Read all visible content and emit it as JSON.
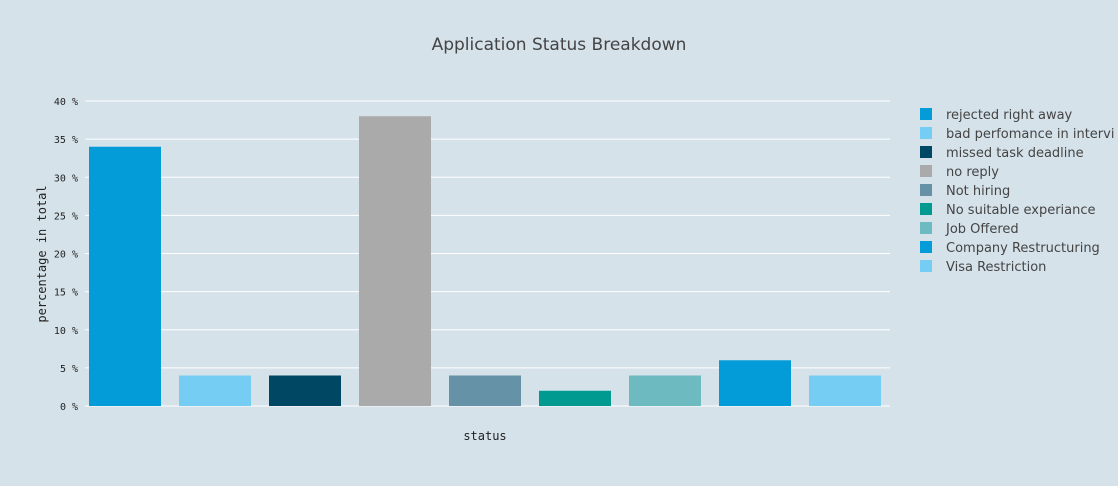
{
  "chart_data": {
    "type": "bar",
    "title": "Application Status Breakdown",
    "xlabel": "status",
    "ylabel": "percentage in total",
    "ylim": [
      0,
      40
    ],
    "yticks": [
      0,
      5,
      10,
      15,
      20,
      25,
      30,
      35,
      40
    ],
    "ytick_suffix": " %",
    "grid": true,
    "legend_position": "right",
    "categories": [
      "rejected right away",
      "bad perfomance in intervi",
      "missed task deadline",
      "no reply",
      "Not hiring",
      "No suitable experiance",
      "Job Offered",
      "Company Restructuring",
      "Visa Restriction"
    ],
    "values": [
      34,
      4,
      4,
      38,
      4,
      2,
      4,
      6,
      4
    ],
    "colors": [
      "#049cd8",
      "#76cdf3",
      "#004763",
      "#aaaaaa",
      "#6592a6",
      "#009a91",
      "#6dbbc1",
      "#049cd8",
      "#76cdf3"
    ]
  }
}
